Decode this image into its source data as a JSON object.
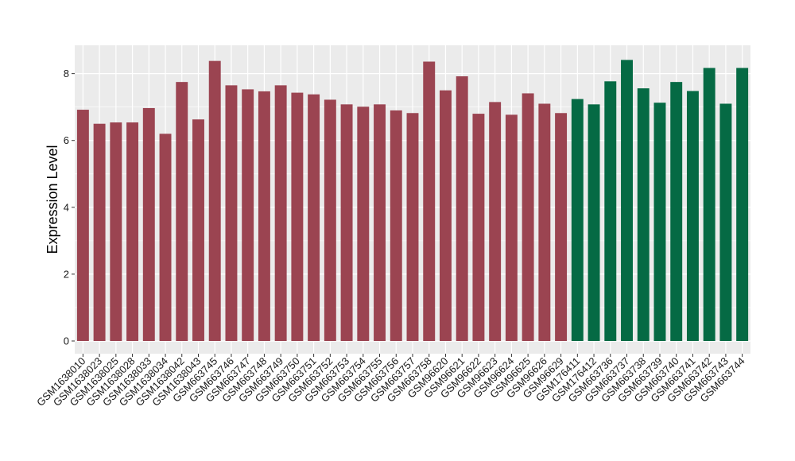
{
  "chart_data": {
    "type": "bar",
    "title": "",
    "xlabel": "",
    "ylabel": "Expression Level",
    "ylim": [
      0,
      8.8
    ],
    "yticks": [
      0,
      2,
      4,
      6,
      8
    ],
    "grid": true,
    "legend": "none",
    "colors": {
      "group1": "#9b4451",
      "group2": "#056a44",
      "panel": "#ebebeb",
      "grid": "#ffffff"
    },
    "categories": [
      "GSM1638010",
      "GSM1638023",
      "GSM1638025",
      "GSM1638028",
      "GSM1638033",
      "GSM1638034",
      "GSM1638042",
      "GSM1638043",
      "GSM663745",
      "GSM663746",
      "GSM663747",
      "GSM663748",
      "GSM663749",
      "GSM663750",
      "GSM663751",
      "GSM663752",
      "GSM663753",
      "GSM663754",
      "GSM663755",
      "GSM663756",
      "GSM663757",
      "GSM663758",
      "GSM96620",
      "GSM96621",
      "GSM96622",
      "GSM96623",
      "GSM96624",
      "GSM96625",
      "GSM96626",
      "GSM96629",
      "GSM176411",
      "GSM176412",
      "GSM663736",
      "GSM663737",
      "GSM663738",
      "GSM663739",
      "GSM663740",
      "GSM663741",
      "GSM663742",
      "GSM663743",
      "GSM663744"
    ],
    "values": [
      6.92,
      6.5,
      6.54,
      6.54,
      6.97,
      6.2,
      7.75,
      6.63,
      8.38,
      7.65,
      7.53,
      7.47,
      7.65,
      7.43,
      7.38,
      7.22,
      7.08,
      7.01,
      7.08,
      6.9,
      6.82,
      8.36,
      7.5,
      7.92,
      6.8,
      7.15,
      6.77,
      7.41,
      7.1,
      6.82,
      7.24,
      7.08,
      7.77,
      8.41,
      7.56,
      7.13,
      7.75,
      7.48,
      8.17,
      7.1,
      8.17
    ],
    "groups": [
      "group1",
      "group1",
      "group1",
      "group1",
      "group1",
      "group1",
      "group1",
      "group1",
      "group1",
      "group1",
      "group1",
      "group1",
      "group1",
      "group1",
      "group1",
      "group1",
      "group1",
      "group1",
      "group1",
      "group1",
      "group1",
      "group1",
      "group1",
      "group1",
      "group1",
      "group1",
      "group1",
      "group1",
      "group1",
      "group1",
      "group2",
      "group2",
      "group2",
      "group2",
      "group2",
      "group2",
      "group2",
      "group2",
      "group2",
      "group2",
      "group2"
    ]
  }
}
